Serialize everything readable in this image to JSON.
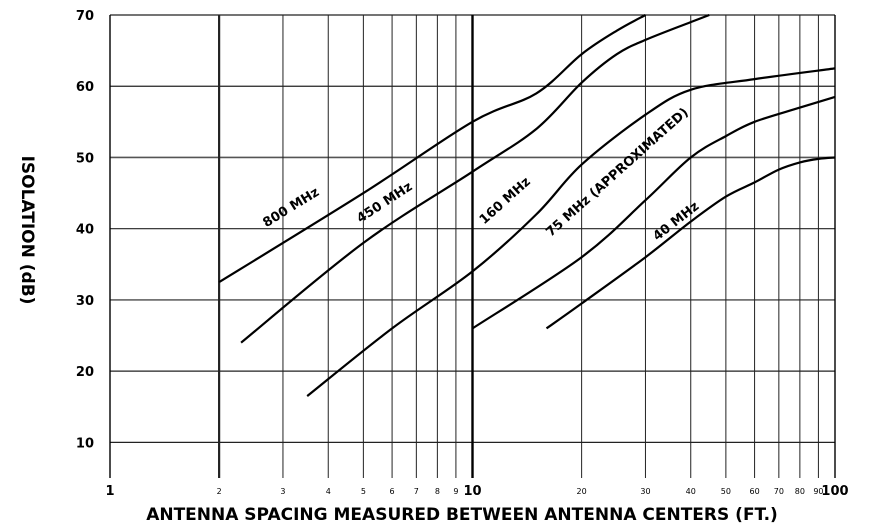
{
  "chart_data": {
    "type": "line",
    "x_scale": "log",
    "xlabel": "ANTENNA SPACING MEASURED BETWEEN ANTENNA CENTERS (FT.)",
    "ylabel": "ISOLATION (dB)",
    "xlim": [
      1,
      100
    ],
    "ylim": [
      5,
      70
    ],
    "grid": true,
    "y_ticks": [
      10,
      20,
      30,
      40,
      50,
      60,
      70
    ],
    "x_major_ticks": [
      {
        "value": 1,
        "label": "1"
      },
      {
        "value": 10,
        "label": "10"
      },
      {
        "value": 100,
        "label": "100"
      }
    ],
    "x_minor_ticks": [
      {
        "value": 2,
        "label": "2"
      },
      {
        "value": 3,
        "label": "3"
      },
      {
        "value": 4,
        "label": "4"
      },
      {
        "value": 5,
        "label": "5"
      },
      {
        "value": 6,
        "label": "6"
      },
      {
        "value": 7,
        "label": "7"
      },
      {
        "value": 8,
        "label": "8"
      },
      {
        "value": 9,
        "label": "9"
      },
      {
        "value": 20,
        "label": "20"
      },
      {
        "value": 30,
        "label": "30"
      },
      {
        "value": 40,
        "label": "40"
      },
      {
        "value": 50,
        "label": "50"
      },
      {
        "value": 60,
        "label": "60"
      },
      {
        "value": 70,
        "label": "70"
      },
      {
        "value": 80,
        "label": "80"
      },
      {
        "value": 90,
        "label": "90"
      }
    ],
    "series": [
      {
        "name": "800 MHz",
        "points": [
          [
            2,
            32.5
          ],
          [
            5,
            45
          ],
          [
            10,
            55
          ],
          [
            15,
            59
          ],
          [
            20,
            64.5
          ],
          [
            25,
            67.8
          ],
          [
            30,
            70
          ]
        ]
      },
      {
        "name": "450 MHz",
        "points": [
          [
            2.3,
            24
          ],
          [
            5,
            38
          ],
          [
            10,
            48
          ],
          [
            15,
            54
          ],
          [
            20,
            60.5
          ],
          [
            25,
            64.5
          ],
          [
            30,
            66.5
          ],
          [
            40,
            69
          ],
          [
            45,
            70
          ]
        ]
      },
      {
        "name": "160 MHz",
        "points": [
          [
            3.5,
            16.5
          ],
          [
            6,
            26
          ],
          [
            10,
            34
          ],
          [
            15,
            42
          ],
          [
            20,
            49
          ],
          [
            30,
            56
          ],
          [
            40,
            59.5
          ],
          [
            60,
            61
          ],
          [
            100,
            62.5
          ]
        ]
      },
      {
        "name": "75 MHz (APPROXIMATED)",
        "points": [
          [
            10,
            26
          ],
          [
            20,
            36
          ],
          [
            30,
            44
          ],
          [
            40,
            50
          ],
          [
            50,
            53
          ],
          [
            60,
            55
          ],
          [
            80,
            57
          ],
          [
            100,
            58.5
          ]
        ]
      },
      {
        "name": "40 MHz",
        "points": [
          [
            16,
            26
          ],
          [
            20,
            29.5
          ],
          [
            30,
            36
          ],
          [
            40,
            41
          ],
          [
            50,
            44.5
          ],
          [
            60,
            46.5
          ],
          [
            70,
            48.3
          ],
          [
            80,
            49.3
          ],
          [
            90,
            49.8
          ],
          [
            100,
            50
          ]
        ]
      }
    ]
  }
}
